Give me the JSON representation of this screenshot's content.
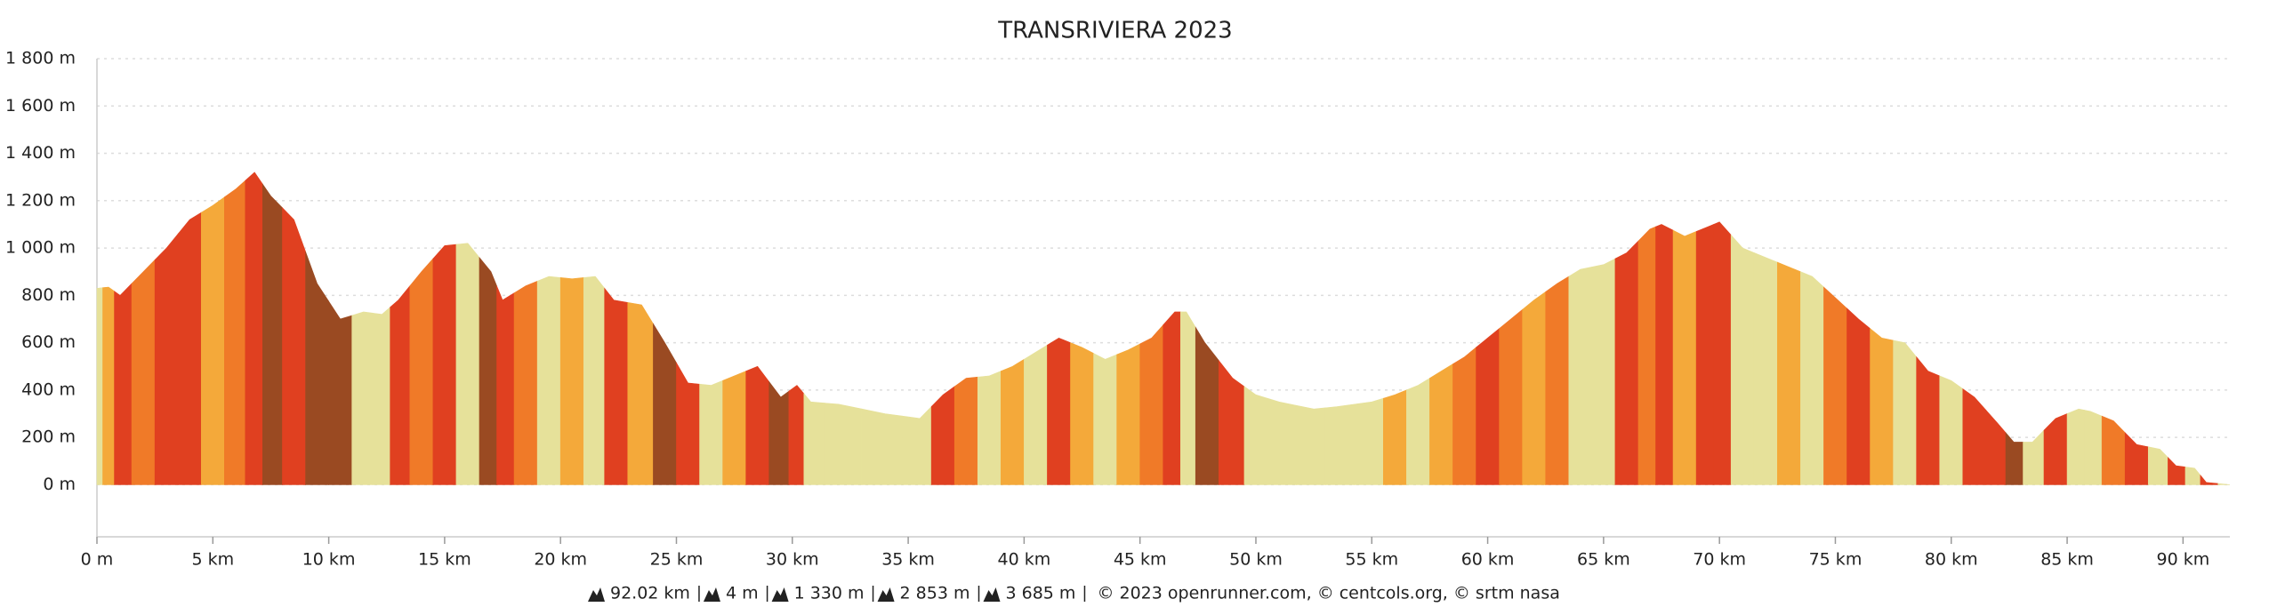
{
  "chart_data": {
    "type": "elevation",
    "title": "TRANSRIVIERA 2023",
    "x": [
      0,
      0.5,
      1,
      2,
      3,
      4,
      5,
      6,
      6.8,
      7.5,
      8.5,
      9.5,
      10.5,
      11.5,
      12.3,
      13,
      14,
      15,
      16,
      17,
      17.5,
      18.5,
      19.5,
      20.5,
      21.5,
      22.3,
      23.5,
      24.5,
      25.5,
      26.5,
      27.5,
      28.5,
      29.5,
      30.2,
      30.8,
      32,
      34,
      35.5,
      36.5,
      37.5,
      38.5,
      39.5,
      40.5,
      41.5,
      42.5,
      43.5,
      44.5,
      45.5,
      46.5,
      47,
      47.8,
      49,
      50,
      51,
      52.5,
      53.5,
      55,
      56,
      57,
      58,
      59,
      60,
      61,
      62,
      63,
      64,
      65,
      66,
      67,
      67.5,
      68.5,
      69.5,
      70,
      71,
      72,
      73,
      74,
      75,
      76,
      77,
      78,
      79,
      80,
      81,
      82,
      82.7,
      83.5,
      84.5,
      85.5,
      86,
      87,
      88,
      89,
      89.7,
      90.5,
      91,
      92.02
    ],
    "values": [
      830,
      835,
      800,
      900,
      1000,
      1120,
      1180,
      1250,
      1320,
      1220,
      1120,
      850,
      700,
      730,
      720,
      780,
      900,
      1010,
      1020,
      900,
      780,
      840,
      880,
      870,
      880,
      780,
      760,
      600,
      430,
      420,
      460,
      500,
      370,
      420,
      350,
      340,
      300,
      280,
      380,
      450,
      460,
      500,
      560,
      620,
      580,
      530,
      570,
      620,
      730,
      730,
      600,
      450,
      380,
      350,
      320,
      330,
      350,
      380,
      420,
      480,
      540,
      620,
      700,
      780,
      850,
      910,
      930,
      980,
      1080,
      1100,
      1050,
      1090,
      1110,
      1000,
      960,
      920,
      880,
      790,
      700,
      620,
      600,
      480,
      440,
      370,
      260,
      180,
      180,
      280,
      320,
      310,
      270,
      170,
      150,
      80,
      70,
      10,
      0
    ],
    "colors": [
      "#e6e19a",
      "#f4a93a",
      "#e04020",
      "#f07a28",
      "#e04020",
      "#e04020",
      "#f4a93a",
      "#f07a28",
      "#e04020",
      "#9a4a22",
      "#e04020",
      "#9a4a22",
      "#9a4a22",
      "#e6e19a",
      "#e6e19a",
      "#e04020",
      "#f07a28",
      "#e04020",
      "#e6e19a",
      "#9a4a22",
      "#e04020",
      "#f07a28",
      "#e6e19a",
      "#f4a93a",
      "#e6e19a",
      "#e04020",
      "#f4a93a",
      "#9a4a22",
      "#e04020",
      "#e6e19a",
      "#f4a93a",
      "#e04020",
      "#9a4a22",
      "#e04020",
      "#e6e19a",
      "#e6e19a",
      "#e6e19a",
      "#e6e19a",
      "#e04020",
      "#f07a28",
      "#e6e19a",
      "#f4a93a",
      "#e6e19a",
      "#e04020",
      "#f4a93a",
      "#e6e19a",
      "#f4a93a",
      "#f07a28",
      "#e04020",
      "#e6e19a",
      "#9a4a22",
      "#e04020",
      "#e6e19a",
      "#e6e19a",
      "#e6e19a",
      "#e6e19a",
      "#e6e19a",
      "#f4a93a",
      "#e6e19a",
      "#f4a93a",
      "#f07a28",
      "#e04020",
      "#f07a28",
      "#f4a93a",
      "#f07a28",
      "#e6e19a",
      "#e6e19a",
      "#e04020",
      "#f07a28",
      "#e04020",
      "#f4a93a",
      "#e04020",
      "#e04020",
      "#e6e19a",
      "#e6e19a",
      "#f4a93a",
      "#e6e19a",
      "#f07a28",
      "#e04020",
      "#f4a93a",
      "#e6e19a",
      "#e04020",
      "#e6e19a",
      "#e04020",
      "#e04020",
      "#9a4a22",
      "#e6e19a",
      "#e04020",
      "#e6e19a",
      "#e6e19a",
      "#f07a28",
      "#e04020",
      "#e6e19a",
      "#e04020",
      "#e6e19a",
      "#e04020",
      "#e6e19a"
    ],
    "xlim": [
      0,
      92.02
    ],
    "ylim": [
      -220,
      1800
    ],
    "xticks": [
      {
        "value": 0,
        "label": "0 m"
      },
      {
        "value": 5,
        "label": "5 km"
      },
      {
        "value": 10,
        "label": "10 km"
      },
      {
        "value": 15,
        "label": "15 km"
      },
      {
        "value": 20,
        "label": "20 km"
      },
      {
        "value": 25,
        "label": "25 km"
      },
      {
        "value": 30,
        "label": "30 km"
      },
      {
        "value": 35,
        "label": "35 km"
      },
      {
        "value": 40,
        "label": "40 km"
      },
      {
        "value": 45,
        "label": "45 km"
      },
      {
        "value": 50,
        "label": "50 km"
      },
      {
        "value": 55,
        "label": "55 km"
      },
      {
        "value": 60,
        "label": "60 km"
      },
      {
        "value": 65,
        "label": "65 km"
      },
      {
        "value": 70,
        "label": "70 km"
      },
      {
        "value": 75,
        "label": "75 km"
      },
      {
        "value": 80,
        "label": "80 km"
      },
      {
        "value": 85,
        "label": "85 km"
      },
      {
        "value": 90,
        "label": "90 km"
      }
    ],
    "yticks": [
      {
        "value": 0,
        "label": "0 m"
      },
      {
        "value": 200,
        "label": "200 m"
      },
      {
        "value": 400,
        "label": "400 m"
      },
      {
        "value": 600,
        "label": "600 m"
      },
      {
        "value": 800,
        "label": "800 m"
      },
      {
        "value": 1000,
        "label": "1 000 m"
      },
      {
        "value": 1200,
        "label": "1 200 m"
      },
      {
        "value": 1400,
        "label": "1 400 m"
      },
      {
        "value": 1600,
        "label": "1 600 m"
      },
      {
        "value": 1800,
        "label": "1 800 m"
      }
    ],
    "grid": true,
    "stats": [
      "92.02 km",
      "4 m",
      "1 330 m",
      "2 853 m",
      "3 685 m"
    ],
    "credits": "© 2023 openrunner.com, © centcols.org, © srtm nasa"
  }
}
